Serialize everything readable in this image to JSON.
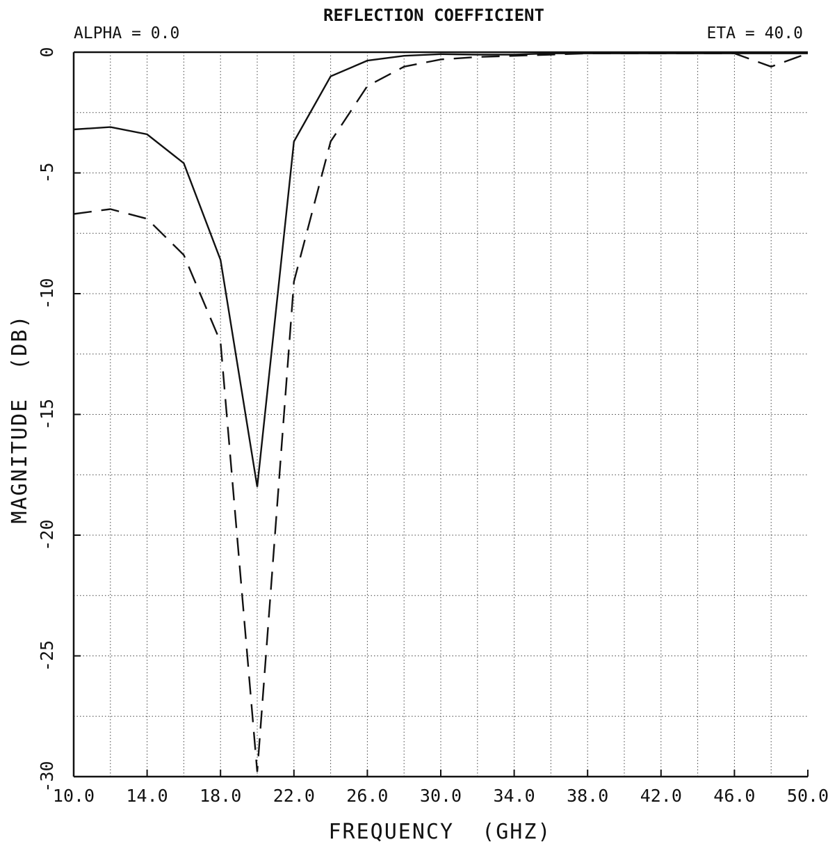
{
  "chart_data": {
    "type": "line",
    "title": "REFLECTION COEFFICIENT",
    "top_left_note": "ALPHA = 0.0",
    "top_right_note": "ETA = 40.0",
    "xlabel": "FREQUENCY  (GHZ)",
    "ylabel": "MAGNITUDE  (DB)",
    "xlim": [
      10.0,
      50.0
    ],
    "ylim": [
      -30,
      0
    ],
    "x_ticks": [
      10.0,
      14.0,
      18.0,
      22.0,
      26.0,
      30.0,
      34.0,
      38.0,
      42.0,
      46.0,
      50.0
    ],
    "x_tick_labels": [
      "10.0",
      "14.0",
      "18.0",
      "22.0",
      "26.0",
      "30.0",
      "34.0",
      "38.0",
      "42.0",
      "46.0",
      "50.0"
    ],
    "y_ticks": [
      0,
      -5,
      -10,
      -15,
      -20,
      -25,
      -30
    ],
    "y_tick_labels": [
      "0",
      "-5",
      "-10",
      "-15",
      "-20",
      "-25",
      "-30"
    ],
    "x_grid_step": 2.0,
    "y_grid_step": 2.5,
    "grid": true,
    "series": [
      {
        "style": "solid",
        "x": [
          10,
          12,
          14,
          16,
          18,
          20,
          22,
          24,
          26,
          28,
          30,
          32,
          34,
          36,
          38,
          40,
          42,
          44,
          46,
          48,
          50
        ],
        "y": [
          -3.2,
          -3.1,
          -3.4,
          -4.6,
          -8.6,
          -18.0,
          -3.7,
          -1.0,
          -0.35,
          -0.15,
          -0.08,
          -0.1,
          -0.1,
          -0.05,
          -0.05,
          -0.05,
          -0.05,
          -0.05,
          -0.05,
          -0.05,
          -0.05
        ]
      },
      {
        "style": "dashed",
        "x": [
          10,
          12,
          14,
          16,
          18,
          20,
          22,
          24,
          26,
          28,
          30,
          32,
          34,
          36,
          38,
          40,
          42,
          44,
          46,
          48,
          50
        ],
        "y": [
          -6.7,
          -6.5,
          -6.9,
          -8.4,
          -12.0,
          -29.8,
          -9.5,
          -3.7,
          -1.4,
          -0.6,
          -0.3,
          -0.2,
          -0.15,
          -0.1,
          -0.05,
          -0.05,
          -0.05,
          -0.05,
          -0.05,
          -0.6,
          -0.05
        ]
      }
    ]
  }
}
